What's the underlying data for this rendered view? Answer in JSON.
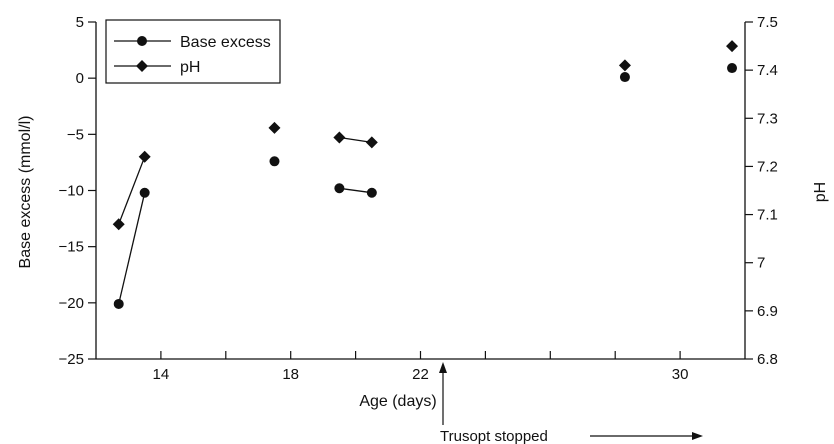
{
  "chart_data": {
    "type": "line",
    "title": "",
    "xlabel": "Age (days)",
    "ylabel_left": "Base excess (mmol/l)",
    "ylabel_right": "pH",
    "xlim": [
      12,
      32
    ],
    "x_ticks": [
      14,
      18,
      22,
      30
    ],
    "x_tick_labels": [
      "14",
      "18",
      "22",
      "30"
    ],
    "x_minor_ticks": [
      16,
      20,
      24,
      26,
      28
    ],
    "ylim_left": [
      -25,
      5
    ],
    "y_left_ticks": [
      5,
      0,
      -5,
      -10,
      -15,
      -20,
      -25
    ],
    "y_left_tick_labels": [
      "5",
      "0",
      "−5",
      "−10",
      "−15",
      "−20",
      "−25"
    ],
    "ylim_right": [
      6.8,
      7.5
    ],
    "y_right_ticks": [
      7.5,
      7.4,
      7.3,
      7.2,
      7.1,
      7,
      6.9,
      6.8
    ],
    "y_right_tick_labels": [
      "7.5",
      "7.4",
      "7.3",
      "7.2",
      "7.1",
      "7",
      "6.9",
      "6.8"
    ],
    "grid": false,
    "legend_position": "top-left",
    "series": [
      {
        "name": "Base excess",
        "axis": "left",
        "marker": "circle",
        "segments": [
          [
            [
              12.7,
              -20.1
            ],
            [
              13.5,
              -10.2
            ]
          ],
          [
            [
              17.5,
              -7.4
            ]
          ],
          [
            [
              19.5,
              -9.8
            ],
            [
              20.5,
              -10.2
            ]
          ],
          [
            [
              28.3,
              0.1
            ]
          ],
          [
            [
              31.6,
              0.9
            ]
          ]
        ]
      },
      {
        "name": "pH",
        "axis": "right",
        "marker": "diamond",
        "segments": [
          [
            [
              12.7,
              7.08
            ],
            [
              13.5,
              7.22
            ]
          ],
          [
            [
              17.5,
              7.28
            ]
          ],
          [
            [
              19.5,
              7.26
            ],
            [
              20.5,
              7.25
            ]
          ],
          [
            [
              28.3,
              7.41
            ]
          ],
          [
            [
              31.6,
              7.45
            ]
          ]
        ]
      }
    ],
    "annotation": {
      "text": "Trusopt stopped",
      "x": 22.6
    }
  }
}
